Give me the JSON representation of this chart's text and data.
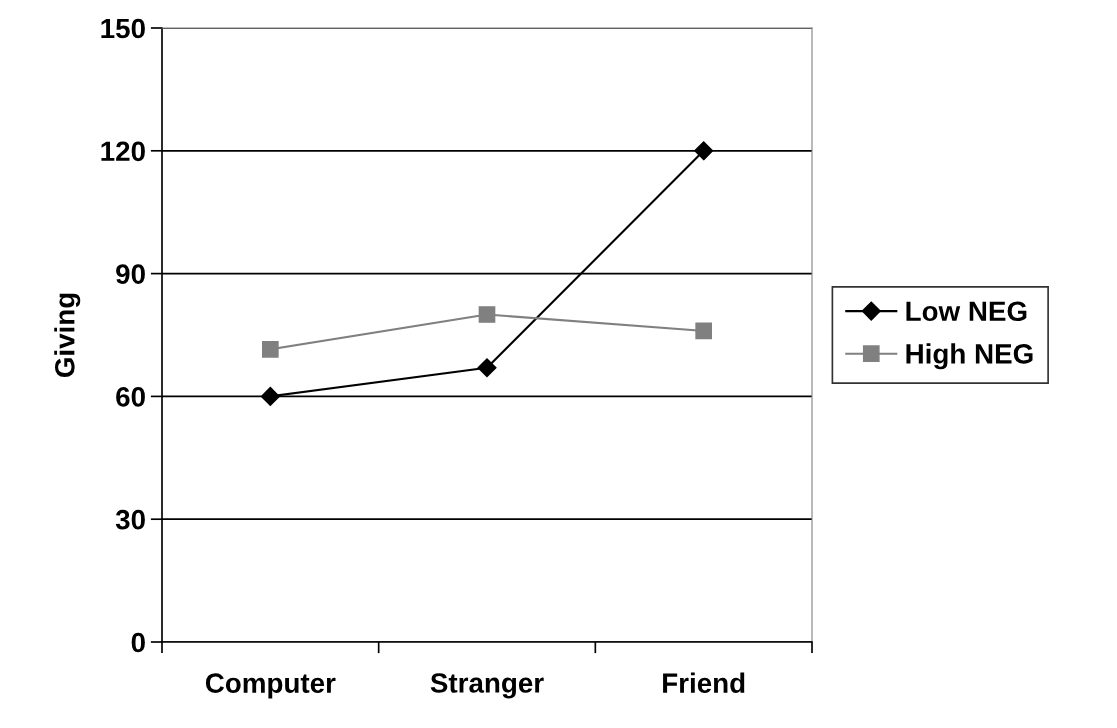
{
  "chart_data": {
    "type": "line",
    "ylabel": "Giving",
    "categories": [
      "Computer",
      "Stranger",
      "Friend"
    ],
    "series": [
      {
        "name": "Low NEG",
        "color": "#000000",
        "marker": "diamond",
        "values": [
          60,
          67,
          120
        ]
      },
      {
        "name": "High NEG",
        "color": "#808080",
        "marker": "square",
        "values": [
          71.5,
          80,
          76
        ]
      }
    ],
    "ylim": [
      0,
      150
    ],
    "yticks": [
      0,
      30,
      60,
      90,
      120,
      150
    ],
    "grid": "y",
    "legend": "right",
    "line_style": "solid"
  }
}
